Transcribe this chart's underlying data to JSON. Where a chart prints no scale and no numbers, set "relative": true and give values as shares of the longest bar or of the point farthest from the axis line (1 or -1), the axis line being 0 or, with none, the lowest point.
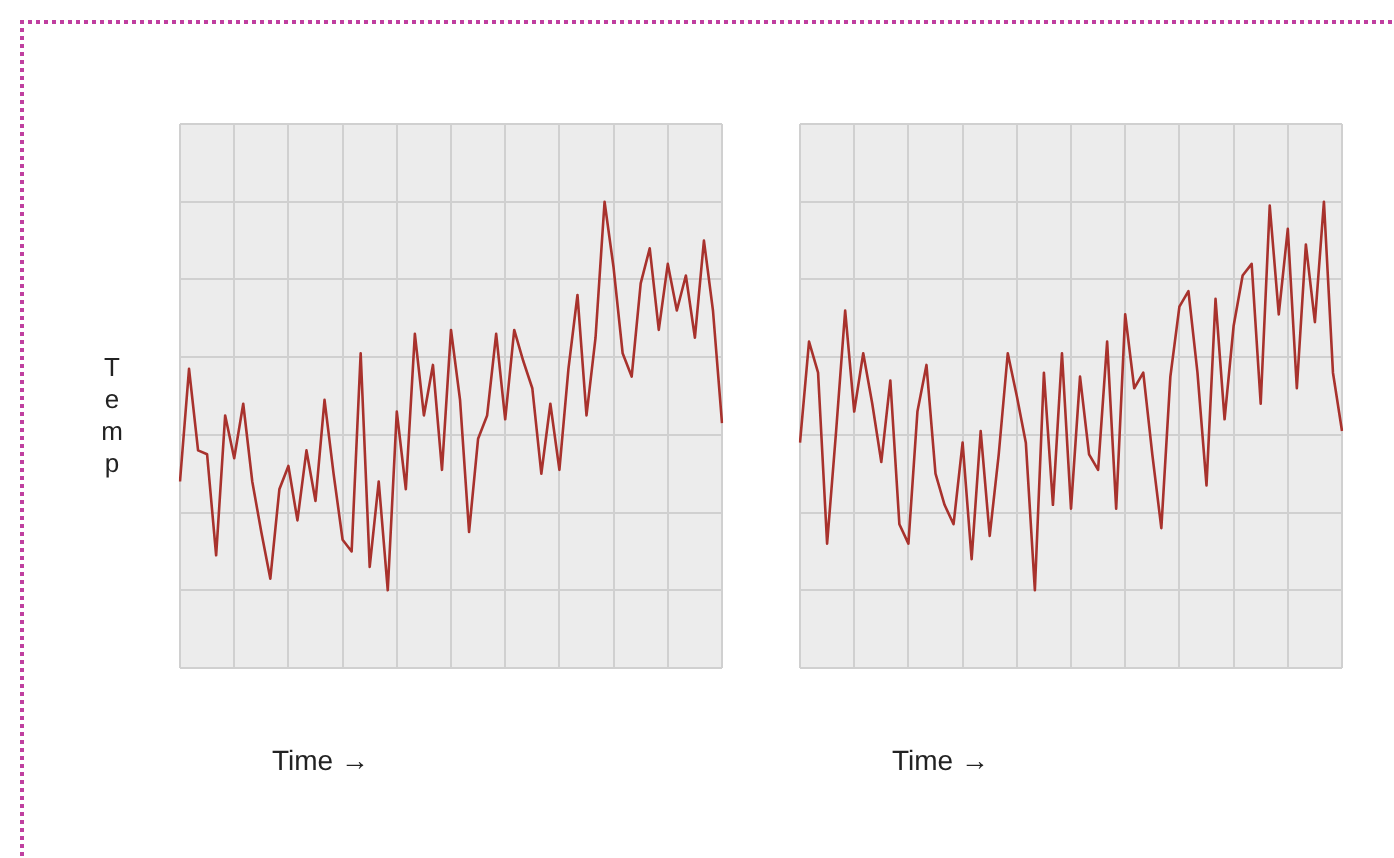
{
  "chart_data": [
    {
      "type": "line",
      "relative": true,
      "ylabel": "Temp",
      "xlabel": "Time →",
      "grid": true,
      "legend": false,
      "categories": [
        null,
        null,
        null,
        null,
        null,
        null,
        null,
        null,
        null,
        null,
        null,
        null,
        null,
        null,
        null,
        null,
        null,
        null,
        null,
        null,
        null,
        null,
        null,
        null,
        null,
        null,
        null,
        null,
        null,
        null,
        null,
        null,
        null,
        null,
        null,
        null,
        null,
        null,
        null,
        null,
        null,
        null,
        null,
        null,
        null,
        null,
        null,
        null,
        null,
        null,
        null,
        null,
        null,
        null,
        null,
        null,
        null,
        null,
        null,
        null,
        null
      ],
      "series": [
        {
          "color": "#a8322d",
          "values": [
            0.28,
            0.57,
            0.36,
            0.35,
            0.09,
            0.45,
            0.34,
            0.48,
            0.28,
            0.15,
            0.03,
            0.26,
            0.32,
            0.18,
            0.36,
            0.23,
            0.49,
            0.3,
            0.13,
            0.1,
            0.61,
            0.06,
            0.28,
            0,
            0.46,
            0.26,
            0.66,
            0.45,
            0.58,
            0.31,
            0.67,
            0.49,
            0.15,
            0.39,
            0.45,
            0.66,
            0.44,
            0.67,
            0.59,
            0.52,
            0.3,
            0.48,
            0.31,
            0.57,
            0.76,
            0.45,
            0.65,
            1,
            0.83,
            0.61,
            0.55,
            0.79,
            0.88,
            0.67,
            0.84,
            0.72,
            0.81,
            0.65,
            0.9,
            0.72,
            0.43
          ]
        }
      ]
    },
    {
      "type": "line",
      "relative": true,
      "xlabel": "Time →",
      "grid": true,
      "legend": false,
      "categories": [
        null,
        null,
        null,
        null,
        null,
        null,
        null,
        null,
        null,
        null,
        null,
        null,
        null,
        null,
        null,
        null,
        null,
        null,
        null,
        null,
        null,
        null,
        null,
        null,
        null,
        null,
        null,
        null,
        null,
        null,
        null,
        null,
        null,
        null,
        null,
        null,
        null,
        null,
        null,
        null,
        null,
        null,
        null,
        null,
        null,
        null,
        null,
        null,
        null,
        null,
        null,
        null,
        null,
        null,
        null,
        null,
        null,
        null,
        null,
        null,
        null
      ],
      "series": [
        {
          "color": "#a8322d",
          "values": [
            0.38,
            0.64,
            0.56,
            0.12,
            0.41,
            0.72,
            0.46,
            0.61,
            0.48,
            0.33,
            0.54,
            0.17,
            0.12,
            0.46,
            0.58,
            0.3,
            0.22,
            0.17,
            0.38,
            0.08,
            0.41,
            0.14,
            0.35,
            0.61,
            0.5,
            0.38,
            0,
            0.56,
            0.22,
            0.61,
            0.21,
            0.55,
            0.35,
            0.31,
            0.64,
            0.21,
            0.71,
            0.52,
            0.56,
            0.35,
            0.16,
            0.55,
            0.73,
            0.77,
            0.56,
            0.27,
            0.75,
            0.44,
            0.68,
            0.81,
            0.84,
            0.48,
            0.99,
            0.71,
            0.93,
            0.52,
            0.89,
            0.69,
            1,
            0.56,
            0.41
          ]
        }
      ]
    }
  ]
}
